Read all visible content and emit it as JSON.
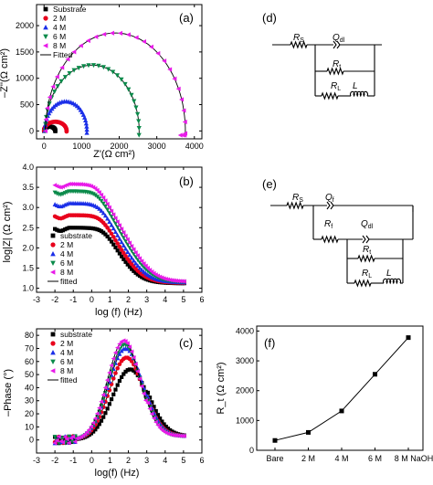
{
  "colors": {
    "substrate": "#000000",
    "2M": "#e8001c",
    "4M": "#1a2ee8",
    "6M": "#0a8a4a",
    "8M": "#e81ae8",
    "fitted": "#000000"
  },
  "panel_labels": {
    "a": "(a)",
    "b": "(b)",
    "c": "(c)",
    "d": "(d)",
    "e": "(e)",
    "f": "(f)"
  },
  "chart_data": [
    {
      "id": "a",
      "type": "scatter",
      "xlabel": "Z'(Ω cm²)",
      "ylabel": "–Z''(Ω cm²)",
      "xlim": [
        -200,
        4200
      ],
      "ylim": [
        -150,
        2400
      ],
      "xticks": [
        0,
        1000,
        2000,
        3000,
        4000
      ],
      "yticks": [
        0,
        500,
        1000,
        1500,
        2000
      ],
      "legend_position": "top-left",
      "series": [
        {
          "name": "Substrate",
          "key": "substrate",
          "marker": "square",
          "cx": 150,
          "R": 150,
          "ry": 0.55,
          "x0": 0,
          "tail": 0
        },
        {
          "name": "2 M",
          "key": "2M",
          "marker": "circle",
          "cx": 300,
          "R": 300,
          "ry": 0.58,
          "x0": 0,
          "tail": 0
        },
        {
          "name": "4 M",
          "key": "4M",
          "marker": "triangle-up",
          "cx": 580,
          "R": 560,
          "ry": 1.0,
          "x0": 20,
          "tail": 0
        },
        {
          "name": "6 M",
          "key": "6M",
          "marker": "triangle-down",
          "cx": 1280,
          "R": 1250,
          "ry": 1.0,
          "x0": 30,
          "tail": 0
        },
        {
          "name": "8 M",
          "key": "8M",
          "marker": "triangle-left",
          "cx": 1900,
          "R": 1860,
          "ry": 1.0,
          "x0": 40,
          "tail": 1
        }
      ],
      "fitted_name": "Fitted"
    },
    {
      "id": "b",
      "type": "scatter",
      "xlabel": "log (f) (Hz)",
      "ylabel": "log|Z| (Ω cm²)",
      "xlim": [
        -3,
        6
      ],
      "ylim": [
        0.9,
        4.0
      ],
      "xticks": [
        -3,
        -2,
        -1,
        0,
        1,
        2,
        3,
        4,
        5,
        6
      ],
      "yticks": [
        1.0,
        1.5,
        2.0,
        2.5,
        3.0,
        3.5,
        4.0
      ],
      "legend_position": "bottom-left",
      "series": [
        {
          "name": "substrate",
          "key": "substrate",
          "marker": "square",
          "plateau": 2.48,
          "hf": 1.12,
          "fc": 0.7
        },
        {
          "name": "2 M",
          "key": "2M",
          "marker": "circle",
          "plateau": 2.8,
          "hf": 1.13,
          "fc": 0.55
        },
        {
          "name": "4 M",
          "key": "4M",
          "marker": "triangle-up",
          "plateau": 3.1,
          "hf": 1.14,
          "fc": 0.45
        },
        {
          "name": "6 M",
          "key": "6M",
          "marker": "triangle-down",
          "plateau": 3.4,
          "hf": 1.15,
          "fc": 0.35
        },
        {
          "name": "8 M",
          "key": "8M",
          "marker": "triangle-left",
          "plateau": 3.58,
          "hf": 1.16,
          "fc": 0.3
        }
      ],
      "fitted_name": "fitted"
    },
    {
      "id": "c",
      "type": "scatter",
      "xlabel": "log(f) (Hz)",
      "ylabel": "–Phase (°)",
      "xlim": [
        -3,
        6
      ],
      "ylim": [
        -10,
        85
      ],
      "xticks": [
        -3,
        -2,
        -1,
        0,
        1,
        2,
        3,
        4,
        5,
        6
      ],
      "yticks": [
        0,
        10,
        20,
        30,
        40,
        50,
        60,
        70,
        80
      ],
      "legend_position": "top-left",
      "series": [
        {
          "name": "substrate",
          "key": "substrate",
          "marker": "square",
          "peak": 54,
          "center": 2.1,
          "width": 1.1
        },
        {
          "name": "2 M",
          "key": "2M",
          "marker": "circle",
          "peak": 63,
          "center": 1.9,
          "width": 1.05
        },
        {
          "name": "4 M",
          "key": "4M",
          "marker": "triangle-up",
          "peak": 70,
          "center": 1.85,
          "width": 1.05
        },
        {
          "name": "6 M",
          "key": "6M",
          "marker": "triangle-down",
          "peak": 73,
          "center": 1.8,
          "width": 1.0
        },
        {
          "name": "8 M",
          "key": "8M",
          "marker": "triangle-left",
          "peak": 76,
          "center": 1.75,
          "width": 1.0
        }
      ],
      "fitted_name": "fitted"
    },
    {
      "id": "f",
      "type": "line",
      "categories": [
        "Bare",
        "2 M",
        "4 M",
        "6 M",
        "8 M NaOH"
      ],
      "values": [
        330,
        600,
        1320,
        2550,
        3780
      ],
      "ylabel": "R_t (Ω cm²)",
      "ylim": [
        0,
        4000
      ],
      "yticks": [
        0,
        1000,
        2000,
        3000,
        4000
      ]
    }
  ],
  "circuits": {
    "d": {
      "rs": "R",
      "rs_sub": "S",
      "q": "Q",
      "q_sub": "dl",
      "rt": "R",
      "rt_sub": "t",
      "rl": "R",
      "rl_sub": "L",
      "l": "L"
    },
    "e": {
      "rs": "R",
      "rs_sub": "S",
      "qf": "Q",
      "qf_sub": "f",
      "rf": "R",
      "rf_sub": "f",
      "qdl": "Q",
      "qdl_sub": "dl",
      "rt": "R",
      "rt_sub": "t",
      "rl": "R",
      "rl_sub": "L",
      "l": "L"
    }
  }
}
